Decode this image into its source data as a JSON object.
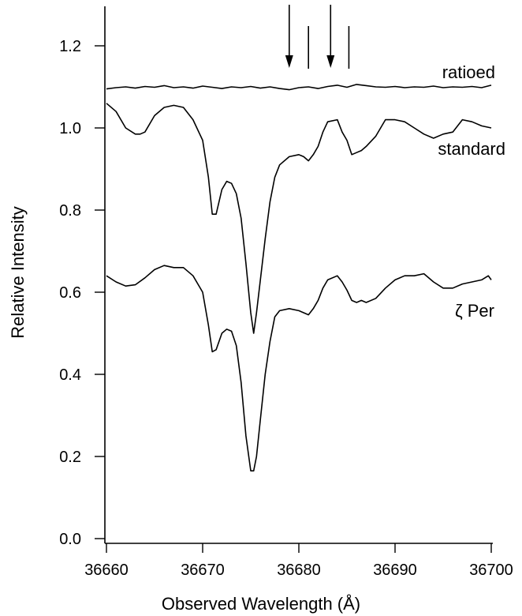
{
  "chart_data": {
    "type": "line",
    "xlabel": "Observed Wavelength (Å)",
    "ylabel": "Relative Intensity",
    "xlim": [
      36660,
      36700
    ],
    "ylim": [
      0.0,
      1.3
    ],
    "xticks": [
      36660,
      36670,
      36680,
      36690,
      36700
    ],
    "xtick_labels": [
      "36660",
      "36670",
      "36680",
      "36690",
      "36700"
    ],
    "yticks": [
      0.0,
      0.2,
      0.4,
      0.6,
      0.8,
      1.0,
      1.2
    ],
    "ytick_labels": [
      "0.0",
      "0.2",
      "0.4",
      "0.6",
      "0.8",
      "1.0",
      "1.2"
    ],
    "grid": false,
    "series": [
      {
        "name": "ratioed",
        "x": [
          36660,
          36661,
          36662,
          36663,
          36664,
          36665,
          36666,
          36667,
          36668,
          36669,
          36670,
          36671,
          36672,
          36673,
          36674,
          36675,
          36676,
          36677,
          36678,
          36679,
          36680,
          36681,
          36682,
          36683,
          36684,
          36685,
          36686,
          36687,
          36688,
          36689,
          36690,
          36691,
          36692,
          36693,
          36694,
          36695,
          36696,
          36697,
          36698,
          36699,
          36700
        ],
        "values": [
          1.095,
          1.098,
          1.1,
          1.097,
          1.101,
          1.099,
          1.103,
          1.098,
          1.1,
          1.097,
          1.102,
          1.099,
          1.096,
          1.1,
          1.098,
          1.101,
          1.097,
          1.1,
          1.096,
          1.093,
          1.098,
          1.1,
          1.096,
          1.101,
          1.104,
          1.099,
          1.106,
          1.103,
          1.1,
          1.099,
          1.101,
          1.098,
          1.1,
          1.099,
          1.102,
          1.098,
          1.1,
          1.099,
          1.101,
          1.098,
          1.104
        ]
      },
      {
        "name": "standard",
        "x": [
          36660,
          36661,
          36662,
          36663,
          36663.5,
          36664,
          36665,
          36666,
          36667,
          36668,
          36669,
          36670,
          36670.6,
          36671,
          36671.4,
          36672,
          36672.5,
          36673,
          36673.5,
          36674,
          36674.5,
          36675,
          36675.3,
          36675.6,
          36676,
          36676.5,
          36677,
          36677.5,
          36678,
          36679,
          36680,
          36680.5,
          36681,
          36681.5,
          36682,
          36682.5,
          36683,
          36684,
          36684.5,
          36685,
          36685.5,
          36686,
          36686.5,
          36687,
          36688,
          36689,
          36690,
          36691,
          36692,
          36693,
          36694,
          36695,
          36696,
          36697,
          36698,
          36699,
          36700
        ],
        "values": [
          1.06,
          1.04,
          1.0,
          0.985,
          0.985,
          0.99,
          1.03,
          1.05,
          1.055,
          1.05,
          1.02,
          0.97,
          0.88,
          0.79,
          0.79,
          0.85,
          0.87,
          0.865,
          0.84,
          0.78,
          0.67,
          0.55,
          0.5,
          0.55,
          0.63,
          0.73,
          0.82,
          0.88,
          0.91,
          0.93,
          0.935,
          0.93,
          0.92,
          0.935,
          0.955,
          0.99,
          1.015,
          1.02,
          0.99,
          0.97,
          0.935,
          0.94,
          0.945,
          0.955,
          0.98,
          1.02,
          1.02,
          1.015,
          1.0,
          0.985,
          0.975,
          0.985,
          0.99,
          1.02,
          1.015,
          1.005,
          1.0
        ]
      },
      {
        "name": "ζ Per",
        "x": [
          36660,
          36661,
          36662,
          36663,
          36664,
          36665,
          36666,
          36667,
          36668,
          36669,
          36670,
          36670.6,
          36671,
          36671.4,
          36672,
          36672.5,
          36673,
          36673.5,
          36674,
          36674.5,
          36675,
          36675.3,
          36675.6,
          36676,
          36676.5,
          36677,
          36677.5,
          36678,
          36679,
          36680,
          36680.5,
          36681,
          36681.5,
          36682,
          36682.5,
          36683,
          36684,
          36684.5,
          36685,
          36685.5,
          36686,
          36686.5,
          36687,
          36688,
          36689,
          36690,
          36691,
          36692,
          36693,
          36694,
          36695,
          36696,
          36697,
          36698,
          36699,
          36699.7,
          36700
        ],
        "values": [
          0.64,
          0.625,
          0.615,
          0.618,
          0.635,
          0.655,
          0.665,
          0.66,
          0.66,
          0.64,
          0.6,
          0.52,
          0.455,
          0.46,
          0.5,
          0.51,
          0.505,
          0.47,
          0.38,
          0.25,
          0.165,
          0.165,
          0.2,
          0.29,
          0.4,
          0.48,
          0.54,
          0.555,
          0.56,
          0.555,
          0.55,
          0.545,
          0.56,
          0.58,
          0.61,
          0.63,
          0.64,
          0.625,
          0.605,
          0.58,
          0.575,
          0.58,
          0.575,
          0.585,
          0.61,
          0.63,
          0.64,
          0.64,
          0.645,
          0.625,
          0.61,
          0.61,
          0.62,
          0.625,
          0.63,
          0.64,
          0.63
        ]
      }
    ],
    "labels": {
      "ratioed": "ratioed",
      "standard": "standard",
      "zeta": "ζ Per"
    },
    "markers": {
      "arrows_x": [
        36679,
        36683.3
      ],
      "bars_x": [
        36681,
        36685.2
      ]
    }
  }
}
